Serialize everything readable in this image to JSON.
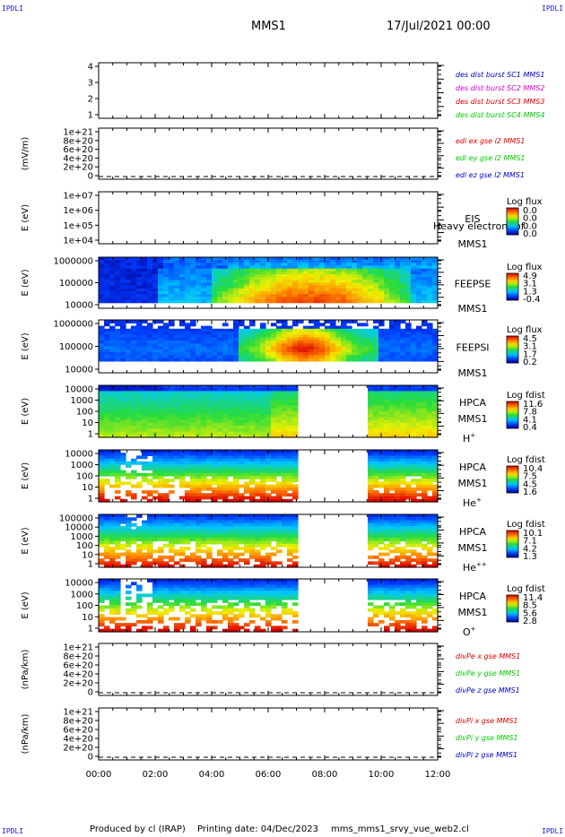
{
  "corners": {
    "tl": "IPDLI",
    "tr": "IPDLI",
    "bl": "IPDLI",
    "br": "IPDLI"
  },
  "header": {
    "title": "MMS1",
    "date": "17/Jul/2021 00:00"
  },
  "footer": {
    "producer": "Produced by cl (IRAP)",
    "printing_date": "Printing date: 04/Dec/2023",
    "script": "mms_mms1_srvy_vue_web2.cl"
  },
  "colors": {
    "blue": "#0000c8",
    "magenta": "#dd00dd",
    "red": "#e00000",
    "green": "#00cc00"
  },
  "chart_data": {
    "type": "heatmap",
    "x_axis": {
      "ticks": [
        "00:00",
        "02:00",
        "04:00",
        "06:00",
        "08:00",
        "10:00",
        "12:00"
      ],
      "range_hours": [
        0,
        12
      ]
    },
    "data_gap_hours": [
      7.1,
      9.45
    ],
    "panels": [
      {
        "id": "dist",
        "kind": "line",
        "ylabel": "",
        "ticks": [
          "4",
          "3",
          "2",
          "1"
        ],
        "legend": [
          {
            "text": "des dist burst SC1 MMS1",
            "color": "#0000c8"
          },
          {
            "text": "des dist burst SC2 MMS2",
            "color": "#dd00dd"
          },
          {
            "text": "des dist burst SC3 MMS3",
            "color": "#e00000"
          },
          {
            "text": "des dist burst SC4 MMS4",
            "color": "#00cc00"
          }
        ]
      },
      {
        "id": "edi",
        "kind": "line",
        "ylabel": "(mV/m)",
        "ticks": [
          "1e+21",
          "8e+20",
          "6e+20",
          "4e+20",
          "2e+20",
          "0"
        ],
        "zero_line": true,
        "legend": [
          {
            "text": "edi ex gse l2 MMS1",
            "color": "#e00000"
          },
          {
            "text": "edi ey gse l2 MMS1",
            "color": "#00cc00"
          },
          {
            "text": "edi ez gse l2 MMS1",
            "color": "#0000c8"
          }
        ]
      },
      {
        "id": "eis",
        "kind": "spectrogram",
        "ylabel": "E (eV)",
        "ticks": [
          "1e+07",
          "1e+06",
          "1e+05",
          "1e+04"
        ],
        "labels": [
          "EIS",
          "MMS1"
        ],
        "overlay": "Heavy electron tof",
        "cbar_title": "Log flux",
        "cbar_ticks": [
          "0.0",
          "0.0",
          "0.0",
          "0.0"
        ]
      },
      {
        "id": "feepse",
        "kind": "spectrogram",
        "ylabel": "E (eV)",
        "ticks": [
          "1000000",
          "100000",
          "10000"
        ],
        "labels": [
          "FEEPSE",
          "MMS1"
        ],
        "cbar_title": "Log flux",
        "cbar_ticks": [
          "4.9",
          "3.1",
          "1.3",
          "-0.4"
        ]
      },
      {
        "id": "feepsi",
        "kind": "spectrogram",
        "ylabel": "E (eV)",
        "ticks": [
          "1000000",
          "100000",
          "10000"
        ],
        "labels": [
          "FEEPSI",
          "MMS1"
        ],
        "cbar_title": "Log flux",
        "cbar_ticks": [
          "4.5",
          "3.1",
          "1.7",
          "0.2"
        ]
      },
      {
        "id": "hpca_h",
        "kind": "spectrogram",
        "ylabel": "E (eV)",
        "ticks": [
          "10000",
          "1000",
          "100",
          "10",
          "1"
        ],
        "labels": [
          "HPCA",
          "MMS1"
        ],
        "species": "H",
        "species_sup": "+",
        "cbar_title": "Log fdist",
        "cbar_ticks": [
          "11.6",
          "7.8",
          "4.1",
          "0.4"
        ]
      },
      {
        "id": "hpca_he",
        "kind": "spectrogram",
        "ylabel": "E (eV)",
        "ticks": [
          "10000",
          "1000",
          "100",
          "10",
          "1"
        ],
        "labels": [
          "HPCA",
          "MMS1"
        ],
        "species": "He",
        "species_sup": "+",
        "cbar_title": "Log fdist",
        "cbar_ticks": [
          "10.4",
          "7.5",
          "4.5",
          "1.6"
        ]
      },
      {
        "id": "hpca_hepp",
        "kind": "spectrogram",
        "ylabel": "E (eV)",
        "ticks": [
          "100000",
          "10000",
          "1000",
          "100",
          "10",
          "1"
        ],
        "labels": [
          "HPCA",
          "MMS1"
        ],
        "species": "He",
        "species_sup": "++",
        "cbar_title": "Log fdist",
        "cbar_ticks": [
          "10.1",
          "7.1",
          "4.2",
          "1.3"
        ]
      },
      {
        "id": "hpca_o",
        "kind": "spectrogram",
        "ylabel": "E (eV)",
        "ticks": [
          "10000",
          "1000",
          "100",
          "10",
          "1"
        ],
        "labels": [
          "HPCA",
          "MMS1"
        ],
        "species": "O",
        "species_sup": "+",
        "cbar_title": "Log fdist",
        "cbar_ticks": [
          "11.4",
          "8.5",
          "5.6",
          "2.8"
        ]
      },
      {
        "id": "divpe",
        "kind": "line",
        "ylabel": "(nPa/km)",
        "ticks": [
          "1e+21",
          "8e+20",
          "6e+20",
          "4e+20",
          "2e+20",
          "0"
        ],
        "zero_line": true,
        "legend": [
          {
            "text": "divPe x gse MMS1",
            "color": "#e00000"
          },
          {
            "text": "divPe y gse MMS1",
            "color": "#00cc00"
          },
          {
            "text": "divPe z gse MMS1",
            "color": "#0000c8"
          }
        ]
      },
      {
        "id": "divpi",
        "kind": "line",
        "ylabel": "(nPa/km)",
        "ticks": [
          "1e+21",
          "8e+20",
          "6e+20",
          "4e+20",
          "2e+20",
          "0"
        ],
        "zero_line": true,
        "legend": [
          {
            "text": "divPi x gse MMS1",
            "color": "#e00000"
          },
          {
            "text": "divPi y gse MMS1",
            "color": "#00cc00"
          },
          {
            "text": "divPi z gse MMS1",
            "color": "#0000c8"
          }
        ]
      }
    ]
  }
}
